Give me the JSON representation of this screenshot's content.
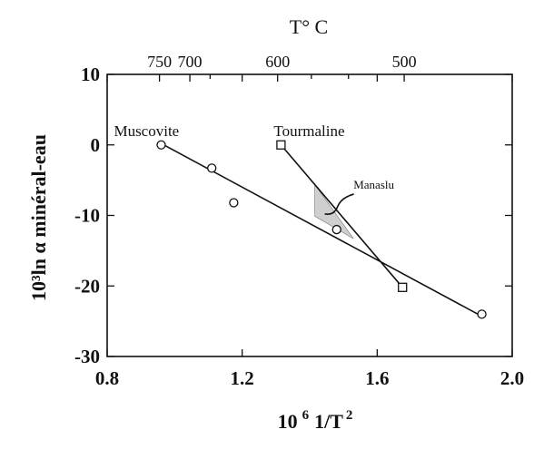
{
  "chart_data": {
    "type": "line",
    "title": "",
    "xlabel": "10 6 1/T 2",
    "ylabel": "10³ln α minéral-eau",
    "x_top_label": "T° C",
    "xlim": [
      0.8,
      2.0
    ],
    "ylim": [
      -30,
      10
    ],
    "x_ticks": [
      {
        "value": 0.8,
        "label": "0.8"
      },
      {
        "value": 1.2,
        "label": "1.2"
      },
      {
        "value": 1.6,
        "label": "1.6"
      },
      {
        "value": 2.0,
        "label": "2.0"
      }
    ],
    "y_ticks": [
      {
        "value": 10,
        "label": "10"
      },
      {
        "value": 0,
        "label": "0"
      },
      {
        "value": -10,
        "label": "-10"
      },
      {
        "value": -20,
        "label": "-20"
      },
      {
        "value": -30,
        "label": "-30"
      }
    ],
    "top_ticks": [
      {
        "x": 0.955,
        "label": "750"
      },
      {
        "x": 1.045,
        "label": "700"
      },
      {
        "x": 1.105,
        "label": "",
        "minor": true
      },
      {
        "x": 1.305,
        "label": "600"
      },
      {
        "x": 1.405,
        "label": "",
        "minor": true
      },
      {
        "x": 1.515,
        "label": "",
        "minor": true
      },
      {
        "x": 1.68,
        "label": "500"
      }
    ],
    "series": [
      {
        "name": "Muscovite",
        "marker": "circle",
        "points": [
          {
            "x": 0.96,
            "y": 0.0
          },
          {
            "x": 1.11,
            "y": -3.3
          },
          {
            "x": 1.175,
            "y": -8.2
          },
          {
            "x": 1.48,
            "y": -12.0
          },
          {
            "x": 1.91,
            "y": -24.0
          }
        ],
        "fit": [
          {
            "x": 0.96,
            "y": 0.2
          },
          {
            "x": 1.91,
            "y": -24.3
          }
        ]
      },
      {
        "name": "Tourmaline",
        "marker": "square",
        "points": [
          {
            "x": 1.315,
            "y": 0.0
          },
          {
            "x": 1.675,
            "y": -20.2
          }
        ],
        "fit": [
          {
            "x": 1.315,
            "y": 0.0
          },
          {
            "x": 1.675,
            "y": -20.2
          }
        ]
      }
    ],
    "annotations": [
      {
        "text": "Manaslu",
        "region": [
          {
            "x": 1.415,
            "y": -5.6
          },
          {
            "x": 1.415,
            "y": -10.1
          },
          {
            "x": 1.53,
            "y": -13.3
          }
        ],
        "label_at": {
          "x": 1.59,
          "y": -6.2
        }
      }
    ],
    "grid": false
  }
}
